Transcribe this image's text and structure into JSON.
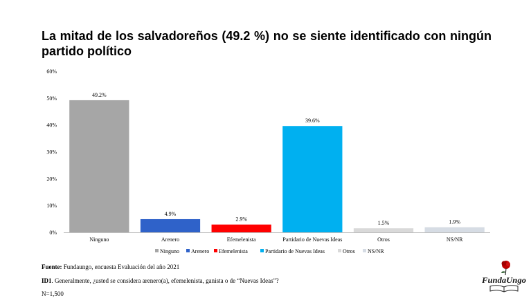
{
  "title": "La mitad de los salvadoreños (49.2 %) no se siente identificado con ningún partido político",
  "chart_data": {
    "type": "bar",
    "categories": [
      "Ninguno",
      "Arenero",
      "Efemelenista",
      "Partidario de Nuevas Ideas",
      "Otros",
      "NS/NR"
    ],
    "values": [
      49.2,
      4.9,
      2.9,
      39.6,
      1.5,
      1.9
    ],
    "value_labels": [
      "49.2%",
      "4.9%",
      "2.9%",
      "39.6%",
      "1.5%",
      "1.9%"
    ],
    "colors": [
      "#a6a6a6",
      "#2f62c9",
      "#ff0000",
      "#00b0f0",
      "#d9d9d9",
      "#d6dce4"
    ],
    "ylim": [
      0,
      60
    ],
    "yticks": [
      0,
      10,
      20,
      30,
      40,
      50,
      60
    ],
    "ytick_labels": [
      "0%",
      "10%",
      "20%",
      "30%",
      "40%",
      "50%",
      "60%"
    ],
    "xlabel": "",
    "ylabel": "",
    "legend": "bottom",
    "grid": false
  },
  "footer": {
    "source_label": "Fuente:",
    "source_text": " Fundaungo, encuesta Evaluación del año 2021",
    "question_label": "ID1",
    "question_text": ". Generalmente, ¿usted se considera arenero(a), efemelenista, ganista o de “Nuevas Ideas”?",
    "n_text": "N=1,500"
  },
  "logo": {
    "text": "FundaUngo",
    "rose_color": "#c00000"
  }
}
